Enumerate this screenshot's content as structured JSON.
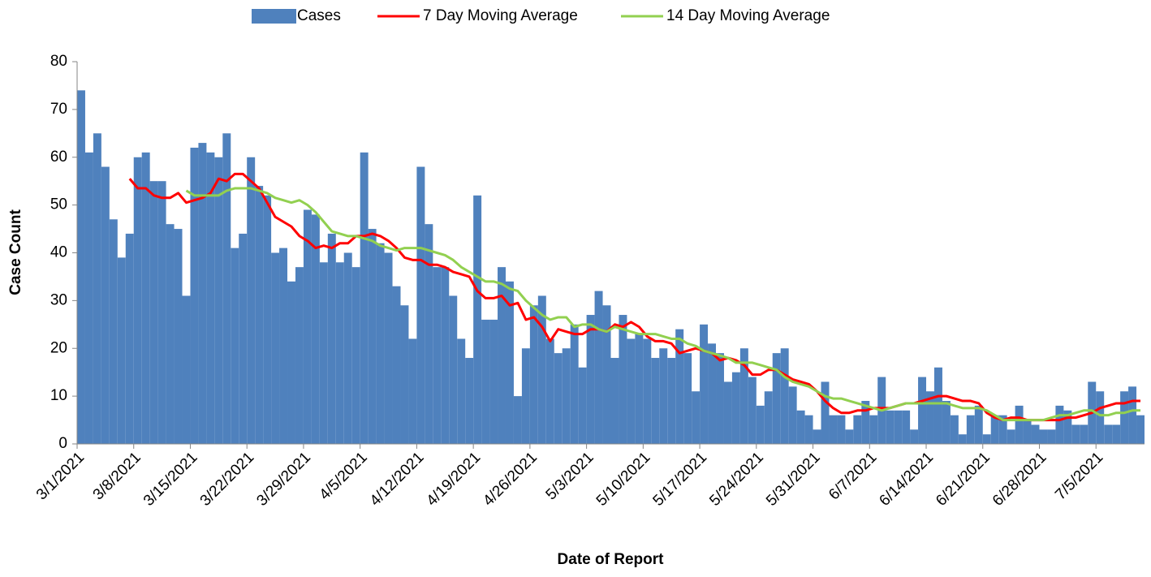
{
  "chart_data": {
    "type": "bar",
    "x_label": "Date of Report",
    "y_label": "Case Count",
    "categories": [
      "3/1/2021",
      null,
      null,
      null,
      null,
      null,
      null,
      "3/8/2021",
      null,
      null,
      null,
      null,
      null,
      null,
      "3/15/2021",
      null,
      null,
      null,
      null,
      null,
      null,
      "3/22/2021",
      null,
      null,
      null,
      null,
      null,
      null,
      "3/29/2021",
      null,
      null,
      null,
      null,
      null,
      null,
      "4/5/2021",
      null,
      null,
      null,
      null,
      null,
      null,
      "4/12/2021",
      null,
      null,
      null,
      null,
      null,
      null,
      "4/19/2021",
      null,
      null,
      null,
      null,
      null,
      null,
      "4/26/2021",
      null,
      null,
      null,
      null,
      null,
      null,
      "5/3/2021",
      null,
      null,
      null,
      null,
      null,
      null,
      "5/10/2021",
      null,
      null,
      null,
      null,
      null,
      null,
      "5/17/2021",
      null,
      null,
      null,
      null,
      null,
      null,
      "5/24/2021",
      null,
      null,
      null,
      null,
      null,
      null,
      "5/31/2021",
      null,
      null,
      null,
      null,
      null,
      null,
      "6/7/2021",
      null,
      null,
      null,
      null,
      null,
      null,
      "6/14/2021",
      null,
      null,
      null,
      null,
      null,
      null,
      "6/21/2021",
      null,
      null,
      null,
      null,
      null,
      null,
      "6/28/2021",
      null,
      null,
      null,
      null,
      null,
      null,
      "7/5/2021",
      null,
      null,
      null,
      null,
      null
    ],
    "series": [
      {
        "name": "Cases",
        "type": "bar",
        "color": "#4f81bd",
        "values": [
          74,
          61,
          65,
          58,
          47,
          39,
          44,
          60,
          61,
          55,
          55,
          46,
          45,
          31,
          62,
          63,
          61,
          60,
          65,
          41,
          44,
          60,
          54,
          52,
          40,
          41,
          34,
          37,
          49,
          48,
          38,
          44,
          38,
          40,
          37,
          61,
          45,
          42,
          40,
          33,
          29,
          22,
          58,
          46,
          37,
          37,
          31,
          22,
          18,
          52,
          26,
          26,
          37,
          34,
          10,
          20,
          29,
          31,
          22,
          19,
          20,
          25,
          16,
          27,
          32,
          29,
          18,
          27,
          22,
          23,
          22,
          18,
          20,
          18,
          24,
          19,
          11,
          25,
          21,
          19,
          13,
          15,
          20,
          14,
          8,
          11,
          19,
          20,
          12,
          7,
          6,
          3,
          13,
          6,
          6,
          3,
          6,
          9,
          6,
          14,
          7,
          7,
          7,
          3,
          14,
          11,
          16,
          9,
          6,
          2,
          6,
          8,
          2,
          6,
          6,
          3,
          8,
          5,
          4,
          3,
          3,
          8,
          7,
          4,
          4,
          13,
          11,
          4,
          4,
          11,
          12,
          6
        ]
      },
      {
        "name": "7 Day Moving Average",
        "type": "line",
        "color": "#ff0000",
        "values": [
          null,
          null,
          null,
          null,
          null,
          null,
          55.5,
          53.5,
          53.5,
          52,
          51.5,
          51.5,
          52.5,
          50.5,
          51,
          51.5,
          52.5,
          55.5,
          55,
          56.5,
          56.5,
          55,
          53.5,
          50.5,
          47.5,
          46.5,
          45.5,
          43.5,
          42.5,
          41,
          41.5,
          41,
          42,
          42,
          43.5,
          43.5,
          44,
          43.5,
          42.5,
          41,
          39,
          38.5,
          38.5,
          37.5,
          37.5,
          37,
          36,
          35.5,
          35,
          32,
          30.5,
          30.5,
          31,
          29,
          29.5,
          26,
          26.5,
          24.5,
          21.5,
          24,
          23.5,
          23,
          23,
          24,
          24,
          23.5,
          25,
          24.5,
          25.5,
          24.5,
          22.5,
          21.5,
          21.5,
          21,
          19,
          19.5,
          20,
          19.5,
          19,
          17.5,
          18,
          17.5,
          16.5,
          14.5,
          14.5,
          15.5,
          15.5,
          14.5,
          13.5,
          13,
          12.5,
          11,
          9,
          7.5,
          6.5,
          6.5,
          7,
          7,
          7.5,
          7.5,
          7.5,
          8,
          8.5,
          8.5,
          9,
          9.5,
          10,
          10,
          9.5,
          9,
          9,
          8.5,
          6.5,
          5.5,
          5,
          5.5,
          5.5,
          5,
          5,
          5,
          5,
          5,
          5.5,
          5.5,
          6,
          6.5,
          7.5,
          8,
          8.5,
          8.5,
          9,
          9
        ]
      },
      {
        "name": "14 Day Moving Average",
        "type": "line",
        "color": "#92d050",
        "values": [
          null,
          null,
          null,
          null,
          null,
          null,
          null,
          null,
          null,
          null,
          null,
          null,
          null,
          53,
          52,
          52,
          52,
          52,
          53,
          53.5,
          53.5,
          53.5,
          53,
          52.5,
          51.5,
          51,
          50.5,
          51,
          50,
          48.5,
          46.5,
          44.5,
          44,
          43.5,
          43.5,
          43,
          42.5,
          41.5,
          41,
          40.5,
          41,
          41,
          41,
          40.5,
          40,
          39.5,
          38.5,
          37,
          36,
          35,
          34,
          34,
          33.5,
          32.5,
          32,
          30,
          28.5,
          27,
          26,
          26.5,
          26.5,
          24.5,
          25,
          25,
          24,
          23.5,
          24.5,
          24,
          23.5,
          23,
          23,
          23,
          22.5,
          22,
          22,
          21,
          20.5,
          19.5,
          19,
          18.5,
          18,
          17,
          17,
          17,
          16.5,
          16,
          15.5,
          14,
          13,
          12.5,
          12,
          11,
          10,
          9.5,
          9.5,
          9,
          8.5,
          8,
          7.5,
          7,
          7.5,
          8,
          8.5,
          8.5,
          8.5,
          8.5,
          8.5,
          8.5,
          8,
          7.5,
          7.5,
          7.5,
          7,
          6,
          5,
          5,
          5,
          5,
          5,
          5,
          5.5,
          6,
          6,
          6.5,
          7,
          7,
          6,
          6,
          6.5,
          6.5,
          7,
          7
        ]
      }
    ],
    "ylim": [
      0,
      80
    ],
    "yticks": [
      0,
      10,
      20,
      30,
      40,
      50,
      60,
      70,
      80
    ],
    "grid": false,
    "legend": "top"
  }
}
